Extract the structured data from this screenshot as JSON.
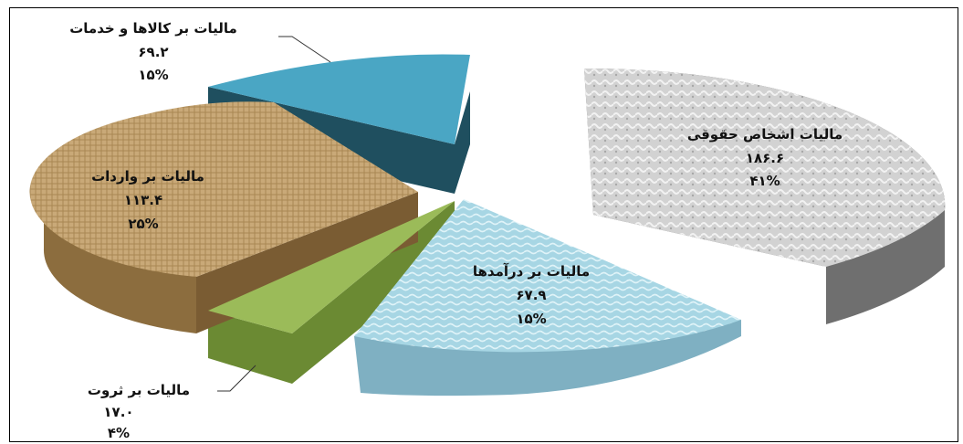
{
  "chart_data": {
    "type": "pie",
    "variant": "3d-exploded",
    "title": "",
    "slices": [
      {
        "name": "مالیات اشخاص حقوقی",
        "value": 186.6,
        "value_label": "۱۸۶.۶",
        "percent_label": "۴۱%",
        "color": "#c9c9c9",
        "side_color": "#6f6f6f"
      },
      {
        "name": "مالیات بر درآمدها",
        "value": 67.9,
        "value_label": "۶۷.۹",
        "percent_label": "۱۵%",
        "color": "#a9d8e6",
        "side_color": "#7fb0c2"
      },
      {
        "name": "مالیات بر ثروت",
        "value": 17.0,
        "value_label": "۱۷.۰",
        "percent_label": "۴%",
        "color": "#9bbb59",
        "side_color": "#6b8a33"
      },
      {
        "name": "مالیات بر واردات",
        "value": 113.4,
        "value_label": "۱۱۳.۴",
        "percent_label": "۲۵%",
        "color": "#c8a978",
        "side_color": "#8c6d3e"
      },
      {
        "name": "مالیات بر کالاها و خدمات",
        "value": 69.2,
        "value_label": "۶۹.۲",
        "percent_label": "۱۵%",
        "color": "#4aa6c4",
        "side_color": "#1f4f5f"
      }
    ]
  }
}
